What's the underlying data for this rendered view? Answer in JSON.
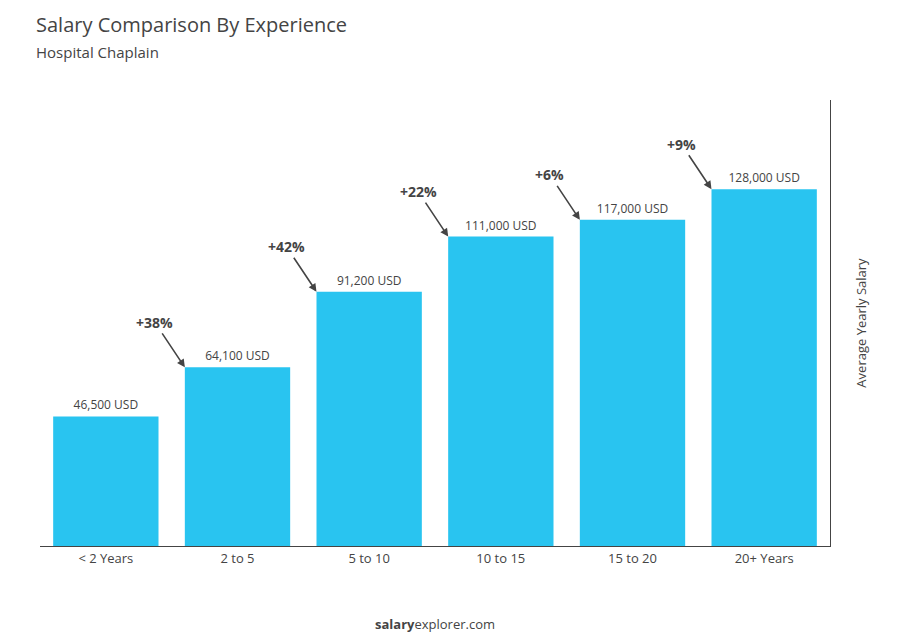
{
  "chart_data": {
    "type": "bar",
    "title": "Salary Comparison By Experience",
    "subtitle": "Hospital Chaplain",
    "ylabel": "Average Yearly Salary",
    "categories": [
      "< 2 Years",
      "2 to 5",
      "5 to 10",
      "10 to 15",
      "15 to 20",
      "20+ Years"
    ],
    "values": [
      46500,
      64100,
      91200,
      111000,
      117000,
      128000
    ],
    "value_labels": [
      "46,500 USD",
      "64,100 USD",
      "91,200 USD",
      "111,000 USD",
      "117,000 USD",
      "128,000 USD"
    ],
    "data_labels": true,
    "annotations": [
      "+38%",
      "+42%",
      "+22%",
      "+6%",
      "+9%"
    ],
    "footer": [
      "salary",
      "explorer.com"
    ],
    "color": "#29C4F0",
    "ylim": [
      0,
      160000
    ],
    "grid": false,
    "tick_labels": "x"
  }
}
